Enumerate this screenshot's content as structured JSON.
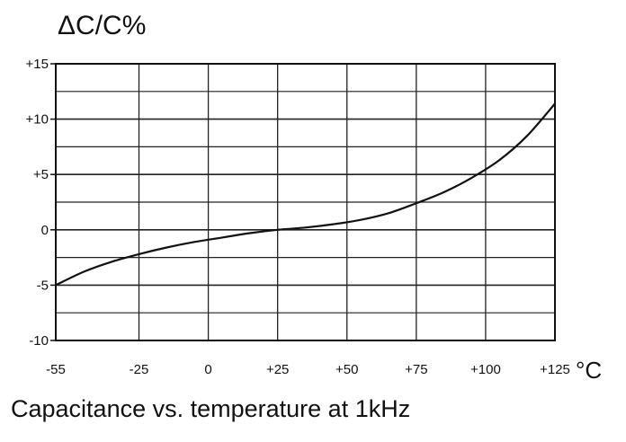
{
  "chart_data": {
    "type": "line",
    "ylabel": "ΔC/C%",
    "xlabel": "°C",
    "title": "Capacitance vs. temperature at 1kHz",
    "xlim": [
      -55,
      125
    ],
    "ylim": [
      -10,
      15
    ],
    "x_ticks": [
      -55,
      -25,
      0,
      25,
      50,
      75,
      100,
      125
    ],
    "x_tick_labels": [
      "-55",
      "-25",
      "0",
      "+25",
      "+50",
      "+75",
      "+100",
      "+125"
    ],
    "y_ticks": [
      -10,
      -5,
      0,
      5,
      10,
      15
    ],
    "y_tick_labels": [
      "-10",
      "-5",
      "0",
      "+5",
      "+10",
      "+15"
    ],
    "grid": true,
    "series": [
      {
        "x": [
          -55,
          -45,
          -35,
          -25,
          -15,
          -5,
          5,
          15,
          25,
          35,
          45,
          55,
          65,
          75,
          85,
          95,
          105,
          115,
          125
        ],
        "values": [
          -5.0,
          -3.8,
          -2.9,
          -2.2,
          -1.6,
          -1.1,
          -0.7,
          -0.3,
          0.0,
          0.2,
          0.5,
          0.9,
          1.5,
          2.4,
          3.4,
          4.7,
          6.3,
          8.5,
          11.4
        ]
      }
    ]
  }
}
